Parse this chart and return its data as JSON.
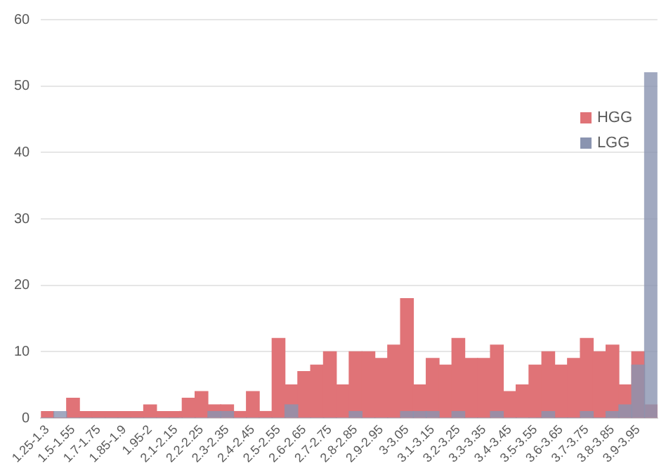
{
  "chart_data": {
    "type": "bar",
    "categories": [
      "1.25-1.3",
      null,
      "1.5-1.55",
      null,
      "1.7-1.75",
      null,
      "1.85-1.9",
      null,
      "1.95-2",
      null,
      "2.1-2.15",
      null,
      "2.2-2.25",
      null,
      "2.3-2.35",
      null,
      "2.4-2.45",
      null,
      "2.5-2.55",
      null,
      "2.6-2.65",
      null,
      "2.7-2.75",
      null,
      "2.8-2.85",
      null,
      "2.9-2.95",
      null,
      "3-3.05",
      null,
      "3.1-3.15",
      null,
      "3.2-3.25",
      null,
      "3.3-3.35",
      null,
      "3.4-3.45",
      null,
      "3.5-3.55",
      null,
      "3.6-3.65",
      null,
      "3.7-3.75",
      null,
      "3.8-3.85",
      null,
      "3.9-3.95",
      null
    ],
    "series": [
      {
        "name": "HGG",
        "color": "#e07377",
        "values": [
          1,
          0,
          3,
          1,
          1,
          1,
          1,
          1,
          2,
          1,
          1,
          3,
          4,
          2,
          2,
          1,
          4,
          1,
          12,
          5,
          7,
          8,
          10,
          5,
          10,
          10,
          9,
          11,
          18,
          5,
          9,
          8,
          12,
          9,
          9,
          11,
          4,
          5,
          8,
          10,
          8,
          9,
          12,
          10,
          11,
          5,
          10,
          2
        ]
      },
      {
        "name": "LGG",
        "color": "#8a94b0",
        "values": [
          0,
          1,
          0,
          0,
          0,
          0,
          0,
          0,
          0,
          0,
          0,
          0,
          0,
          1,
          1,
          0,
          0,
          0,
          0,
          2,
          0,
          0,
          0,
          0,
          1,
          0,
          0,
          0,
          1,
          1,
          1,
          0,
          1,
          0,
          0,
          1,
          0,
          0,
          0,
          1,
          0,
          0,
          1,
          0,
          1,
          2,
          8,
          52
        ]
      }
    ],
    "ylim": [
      0,
      60
    ],
    "yticks": [
      0,
      10,
      20,
      30,
      40,
      50,
      60
    ],
    "grid": "y",
    "legend": "top right"
  }
}
